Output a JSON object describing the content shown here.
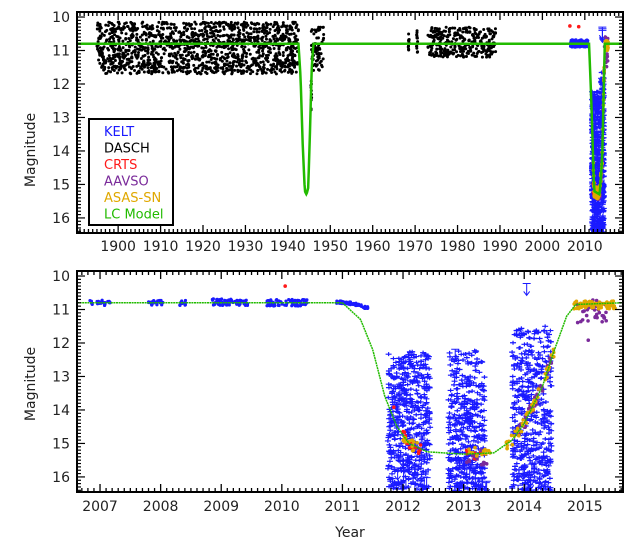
{
  "colors": {
    "KELT": "#1a1aff",
    "DASCH": "#000000",
    "CRTS": "#ff1a1a",
    "AAVSO": "#7a2a9a",
    "ASAS-SN": "#e0a800",
    "LC Model": "#22bb00"
  },
  "legend": [
    "KELT",
    "DASCH",
    "CRTS",
    "AAVSO",
    "ASAS-SN",
    "LC Model"
  ],
  "chart_data": [
    {
      "type": "scatter",
      "name": "top-panel",
      "ylabel": "Magnitude",
      "xlabel": "",
      "xlim": [
        1890.3,
        2019
      ],
      "ylim": [
        16.45,
        9.85
      ],
      "x_ticks": [
        1900,
        1910,
        1920,
        1930,
        1940,
        1950,
        1960,
        1970,
        1980,
        1990,
        2000,
        2010
      ],
      "x_tick_labels": [
        "1900",
        "1910",
        "1920",
        "1930",
        "1940",
        "1950",
        "1960",
        "1970",
        "1980",
        "1990",
        "2000",
        "2010"
      ],
      "y_ticks": [
        10,
        11,
        12,
        13,
        14,
        15,
        16
      ],
      "y_tick_labels": [
        "10",
        "11",
        "12",
        "13",
        "14",
        "15",
        "16"
      ],
      "legend_position": "bottom-left",
      "model": [
        [
          1890.3,
          10.8
        ],
        [
          1942.5,
          10.8
        ],
        [
          1943.0,
          11.8
        ],
        [
          1943.5,
          13.8
        ],
        [
          1944.0,
          15.2
        ],
        [
          1944.4,
          15.3
        ],
        [
          1944.8,
          15.1
        ],
        [
          1945.2,
          13.5
        ],
        [
          1945.6,
          11.6
        ],
        [
          1946.0,
          10.8
        ],
        [
          2011.0,
          10.8
        ],
        [
          2011.5,
          12.4
        ],
        [
          2012.2,
          15.2
        ],
        [
          2013.5,
          15.3
        ],
        [
          2014.1,
          14.2
        ],
        [
          2014.7,
          10.8
        ],
        [
          2016.0,
          10.8
        ]
      ],
      "groups": [
        {
          "series": "DASCH",
          "x": [
            1895,
            1942.5
          ],
          "mag": [
            10.15,
            11.7
          ],
          "n": 1400,
          "shape": "dot"
        },
        {
          "series": "DASCH",
          "x": [
            1945.5,
            1948.5
          ],
          "mag": [
            10.3,
            11.6
          ],
          "n": 70,
          "shape": "dot"
        },
        {
          "series": "DASCH",
          "x": [
            1945.4,
            1945.6
          ],
          "mag": [
            11.9,
            13.0
          ],
          "n": 10,
          "shape": "dot"
        },
        {
          "series": "DASCH",
          "x": [
            1968.3,
            1968.6
          ],
          "mag": [
            10.5,
            11.0
          ],
          "n": 12,
          "shape": "dot"
        },
        {
          "series": "DASCH",
          "x": [
            1970.3,
            1970.6
          ],
          "mag": [
            10.4,
            11.1
          ],
          "n": 14,
          "shape": "dot"
        },
        {
          "series": "DASCH",
          "x": [
            1973,
            1989
          ],
          "mag": [
            10.3,
            11.2
          ],
          "n": 320,
          "shape": "dot"
        },
        {
          "series": "KELT",
          "x": [
            2006.6,
            2010.8
          ],
          "mag": [
            10.68,
            10.9
          ],
          "n": 120,
          "shape": "dot"
        },
        {
          "series": "KELT",
          "x": [
            2011.7,
            2012.5
          ],
          "mag": [
            12.2,
            16.45
          ],
          "n": 260,
          "shape": "cross"
        },
        {
          "series": "KELT",
          "x": [
            2012.8,
            2013.4
          ],
          "mag": [
            12.2,
            16.45
          ],
          "n": 200,
          "shape": "cross"
        },
        {
          "series": "KELT",
          "x": [
            2013.8,
            2014.5
          ],
          "mag": [
            11.6,
            16.45
          ],
          "n": 220,
          "shape": "cross"
        },
        {
          "series": "KELT",
          "x": [
            2014.0,
            2014.2
          ],
          "mag": [
            10.2,
            10.5
          ],
          "n": 3,
          "shape": "arrow"
        },
        {
          "series": "CRTS",
          "x": [
            2006.4,
            2006.6
          ],
          "mag": [
            10.25,
            10.3
          ],
          "n": 1,
          "shape": "dot"
        },
        {
          "series": "CRTS",
          "x": [
            2008.4,
            2008.6
          ],
          "mag": [
            10.25,
            10.3
          ],
          "n": 1,
          "shape": "dot"
        },
        {
          "series": "CRTS",
          "x": [
            2012.0,
            2012.4
          ],
          "mag": [
            14.8,
            15.5
          ],
          "n": 8,
          "shape": "dot"
        },
        {
          "series": "AAVSO",
          "x": [
            2012.2,
            2014.7
          ],
          "mag": [
            10.8,
            15.7
          ],
          "n": 40,
          "shape": "model"
        },
        {
          "series": "AAVSO",
          "x": [
            2014.8,
            2015.4
          ],
          "mag": [
            10.6,
            11.5
          ],
          "n": 20,
          "shape": "dot"
        },
        {
          "series": "ASAS-SN",
          "x": [
            2012.0,
            2014.6
          ],
          "mag": [
            11.0,
            15.3
          ],
          "n": 60,
          "shape": "model"
        },
        {
          "series": "ASAS-SN",
          "x": [
            2014.8,
            2015.5
          ],
          "mag": [
            10.7,
            11.0
          ],
          "n": 40,
          "shape": "dot"
        }
      ]
    },
    {
      "type": "scatter",
      "name": "bottom-panel",
      "ylabel": "Magnitude",
      "xlabel": "Year",
      "xlim": [
        2006.62,
        2015.63
      ],
      "ylim": [
        16.45,
        9.85
      ],
      "x_ticks": [
        2007,
        2008,
        2009,
        2010,
        2011,
        2012,
        2013,
        2014,
        2015
      ],
      "x_tick_labels": [
        "2007",
        "2008",
        "2009",
        "2010",
        "2011",
        "2012",
        "2013",
        "2014",
        "2015"
      ],
      "y_ticks": [
        10,
        11,
        12,
        13,
        14,
        15,
        16
      ],
      "y_tick_labels": [
        "10",
        "11",
        "12",
        "13",
        "14",
        "15",
        "16"
      ],
      "model": [
        [
          2006.62,
          10.8
        ],
        [
          2011.0,
          10.8
        ],
        [
          2011.3,
          11.3
        ],
        [
          2011.5,
          12.2
        ],
        [
          2011.7,
          13.6
        ],
        [
          2011.9,
          14.5
        ],
        [
          2012.1,
          15.0
        ],
        [
          2012.4,
          15.25
        ],
        [
          2013.0,
          15.32
        ],
        [
          2013.5,
          15.28
        ],
        [
          2013.8,
          14.9
        ],
        [
          2014.0,
          14.4
        ],
        [
          2014.3,
          13.3
        ],
        [
          2014.5,
          12.2
        ],
        [
          2014.7,
          11.2
        ],
        [
          2014.85,
          10.85
        ],
        [
          2015.6,
          10.8
        ]
      ],
      "groups": [
        {
          "series": "KELT",
          "x": [
            2006.83,
            2006.88
          ],
          "mag": [
            10.72,
            10.85
          ],
          "n": 5,
          "shape": "dot"
        },
        {
          "series": "KELT",
          "x": [
            2006.95,
            2007.17
          ],
          "mag": [
            10.72,
            10.88
          ],
          "n": 20,
          "shape": "dot"
        },
        {
          "series": "KELT",
          "x": [
            2007.8,
            2008.05
          ],
          "mag": [
            10.72,
            10.88
          ],
          "n": 25,
          "shape": "dot"
        },
        {
          "series": "KELT",
          "x": [
            2008.3,
            2008.42
          ],
          "mag": [
            10.72,
            10.88
          ],
          "n": 12,
          "shape": "dot"
        },
        {
          "series": "KELT",
          "x": [
            2008.8,
            2009.45
          ],
          "mag": [
            10.68,
            10.88
          ],
          "n": 80,
          "shape": "dot"
        },
        {
          "series": "KELT",
          "x": [
            2009.75,
            2010.42
          ],
          "mag": [
            10.7,
            10.9
          ],
          "n": 80,
          "shape": "dot"
        },
        {
          "series": "KELT",
          "x": [
            2010.9,
            2011.45
          ],
          "mag": [
            10.75,
            11.0
          ],
          "n": 60,
          "shape": "curve"
        },
        {
          "series": "KELT",
          "x": [
            2011.75,
            2012.45
          ],
          "mag": [
            12.2,
            16.4
          ],
          "n": 520,
          "shape": "cross"
        },
        {
          "series": "KELT",
          "x": [
            2012.75,
            2013.35
          ],
          "mag": [
            12.2,
            16.4
          ],
          "n": 440,
          "shape": "cross"
        },
        {
          "series": "KELT",
          "x": [
            2013.8,
            2014.45
          ],
          "mag": [
            11.5,
            16.4
          ],
          "n": 460,
          "shape": "cross"
        },
        {
          "series": "KELT",
          "x": [
            2011.9,
            2012.4
          ],
          "mag": [
            15.3,
            16.4
          ],
          "n": 12,
          "shape": "arrow"
        },
        {
          "series": "KELT",
          "x": [
            2013.0,
            2013.4
          ],
          "mag": [
            15.6,
            16.4
          ],
          "n": 10,
          "shape": "arrow"
        },
        {
          "series": "KELT",
          "x": [
            2013.85,
            2014.2
          ],
          "mag": [
            15.6,
            16.4
          ],
          "n": 10,
          "shape": "arrow"
        },
        {
          "series": "KELT",
          "x": [
            2012.85,
            2012.87
          ],
          "mag": [
            12.1,
            12.2
          ],
          "n": 1,
          "shape": "arrow"
        },
        {
          "series": "KELT",
          "x": [
            2014.04,
            2014.06
          ],
          "mag": [
            10.2,
            10.3
          ],
          "n": 1,
          "shape": "arrow"
        },
        {
          "series": "KELT",
          "x": [
            2014.4,
            2014.42
          ],
          "mag": [
            14.8,
            14.9
          ],
          "n": 1,
          "shape": "arrow"
        },
        {
          "series": "CRTS",
          "x": [
            2010.04,
            2010.06
          ],
          "mag": [
            10.3,
            10.32
          ],
          "n": 1,
          "shape": "dot"
        },
        {
          "series": "CRTS",
          "x": [
            2011.84,
            2011.86
          ],
          "mag": [
            13.9,
            14.0
          ],
          "n": 1,
          "shape": "dot"
        },
        {
          "series": "CRTS",
          "x": [
            2012.0,
            2012.3
          ],
          "mag": [
            14.8,
            15.3
          ],
          "n": 14,
          "shape": "model"
        },
        {
          "series": "CRTS",
          "x": [
            2013.05,
            2013.4
          ],
          "mag": [
            15.2,
            15.5
          ],
          "n": 10,
          "shape": "dot"
        },
        {
          "series": "AAVSO",
          "x": [
            2013.05,
            2013.45
          ],
          "mag": [
            15.2,
            15.7
          ],
          "n": 12,
          "shape": "dot"
        },
        {
          "series": "AAVSO",
          "x": [
            2013.9,
            2014.45
          ],
          "mag": [
            11.5,
            15.0
          ],
          "n": 45,
          "shape": "model"
        },
        {
          "series": "AAVSO",
          "x": [
            2014.85,
            2015.4
          ],
          "mag": [
            10.7,
            11.4
          ],
          "n": 35,
          "shape": "dot"
        },
        {
          "series": "AAVSO",
          "x": [
            2015.05,
            2015.07
          ],
          "mag": [
            11.9,
            11.95
          ],
          "n": 1,
          "shape": "dot"
        },
        {
          "series": "ASAS-SN",
          "x": [
            2012.0,
            2012.25
          ],
          "mag": [
            14.5,
            15.2
          ],
          "n": 14,
          "shape": "model"
        },
        {
          "series": "ASAS-SN",
          "x": [
            2013.0,
            2013.45
          ],
          "mag": [
            15.1,
            15.4
          ],
          "n": 14,
          "shape": "dot"
        },
        {
          "series": "ASAS-SN",
          "x": [
            2013.7,
            2014.5
          ],
          "mag": [
            11.8,
            14.7
          ],
          "n": 45,
          "shape": "model"
        },
        {
          "series": "ASAS-SN",
          "x": [
            2014.8,
            2015.5
          ],
          "mag": [
            10.75,
            11.0
          ],
          "n": 70,
          "shape": "dot"
        }
      ]
    }
  ]
}
